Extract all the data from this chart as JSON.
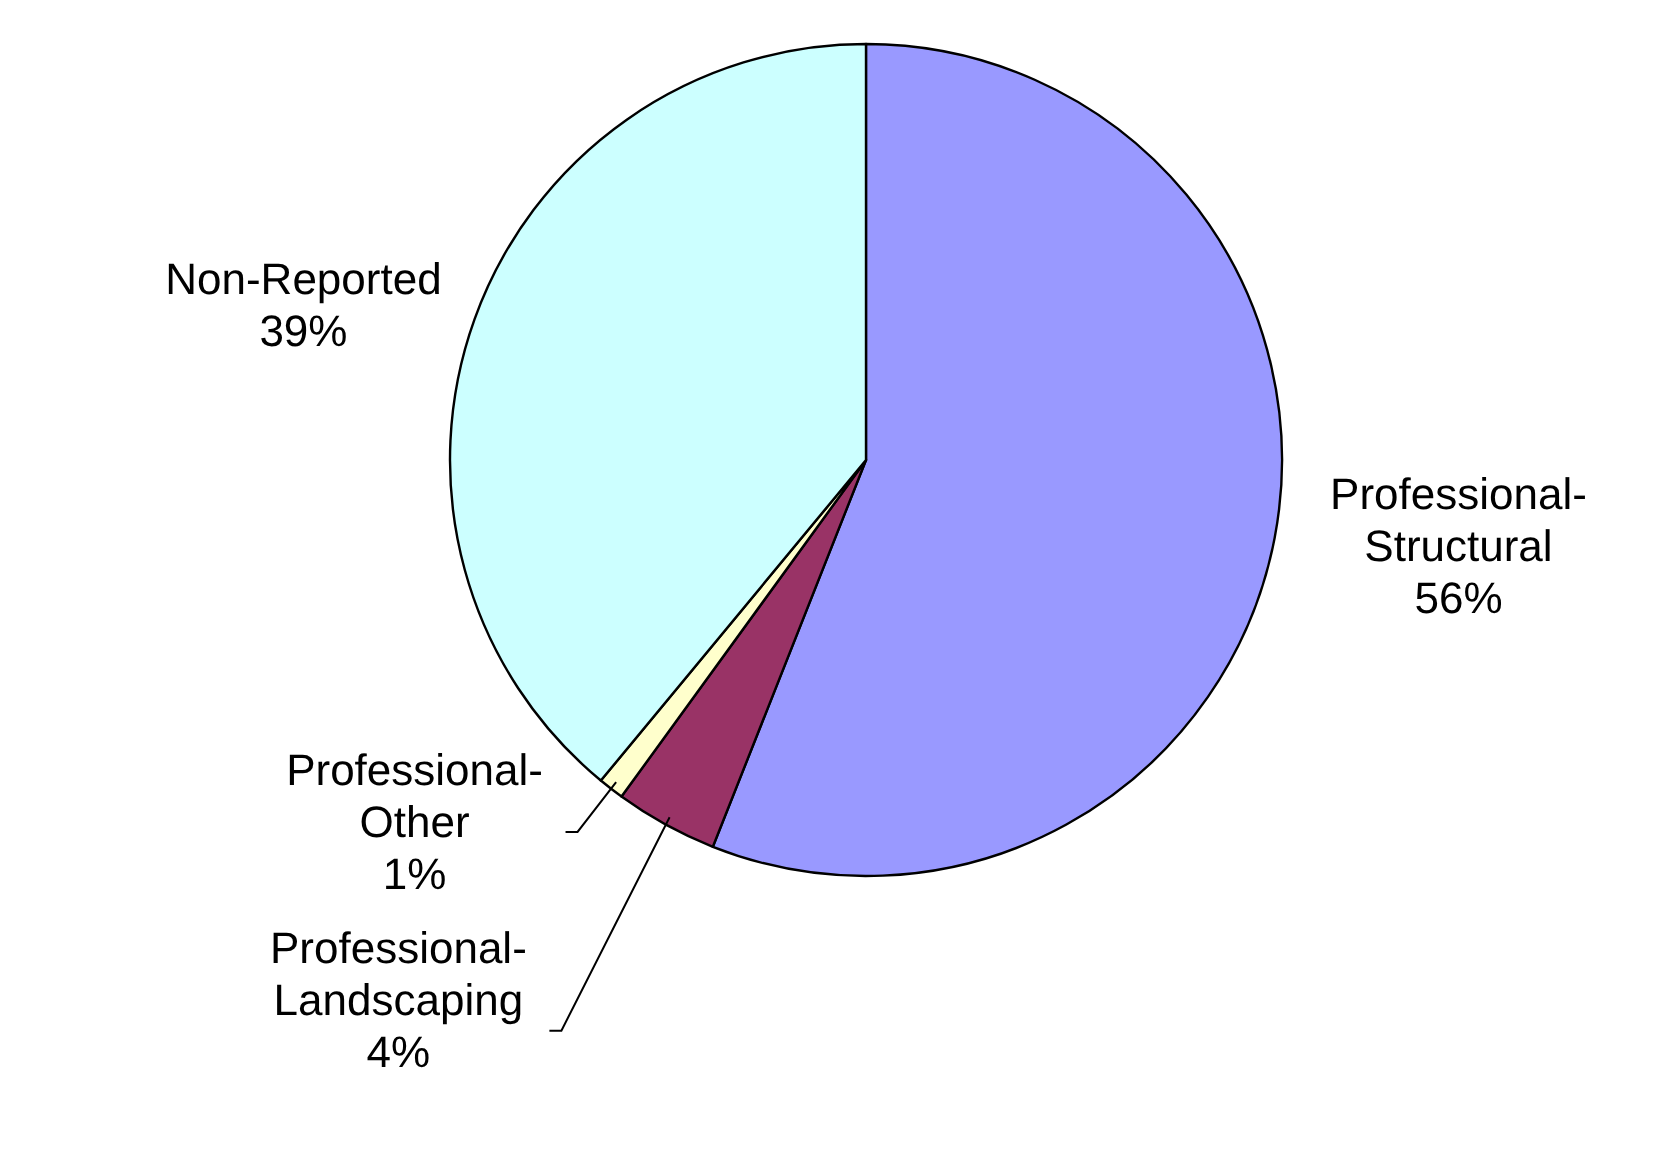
{
  "chart_data": {
    "type": "pie",
    "categories": [
      "Professional-Structural",
      "Professional-Landscaping",
      "Professional-Other",
      "Non-Reported"
    ],
    "values": [
      56,
      4,
      1,
      39
    ],
    "value_labels": [
      "56%",
      "4%",
      "1%",
      "39%"
    ],
    "colors": [
      "#9999ff",
      "#993366",
      "#ffffcc",
      "#ccffff"
    ]
  }
}
